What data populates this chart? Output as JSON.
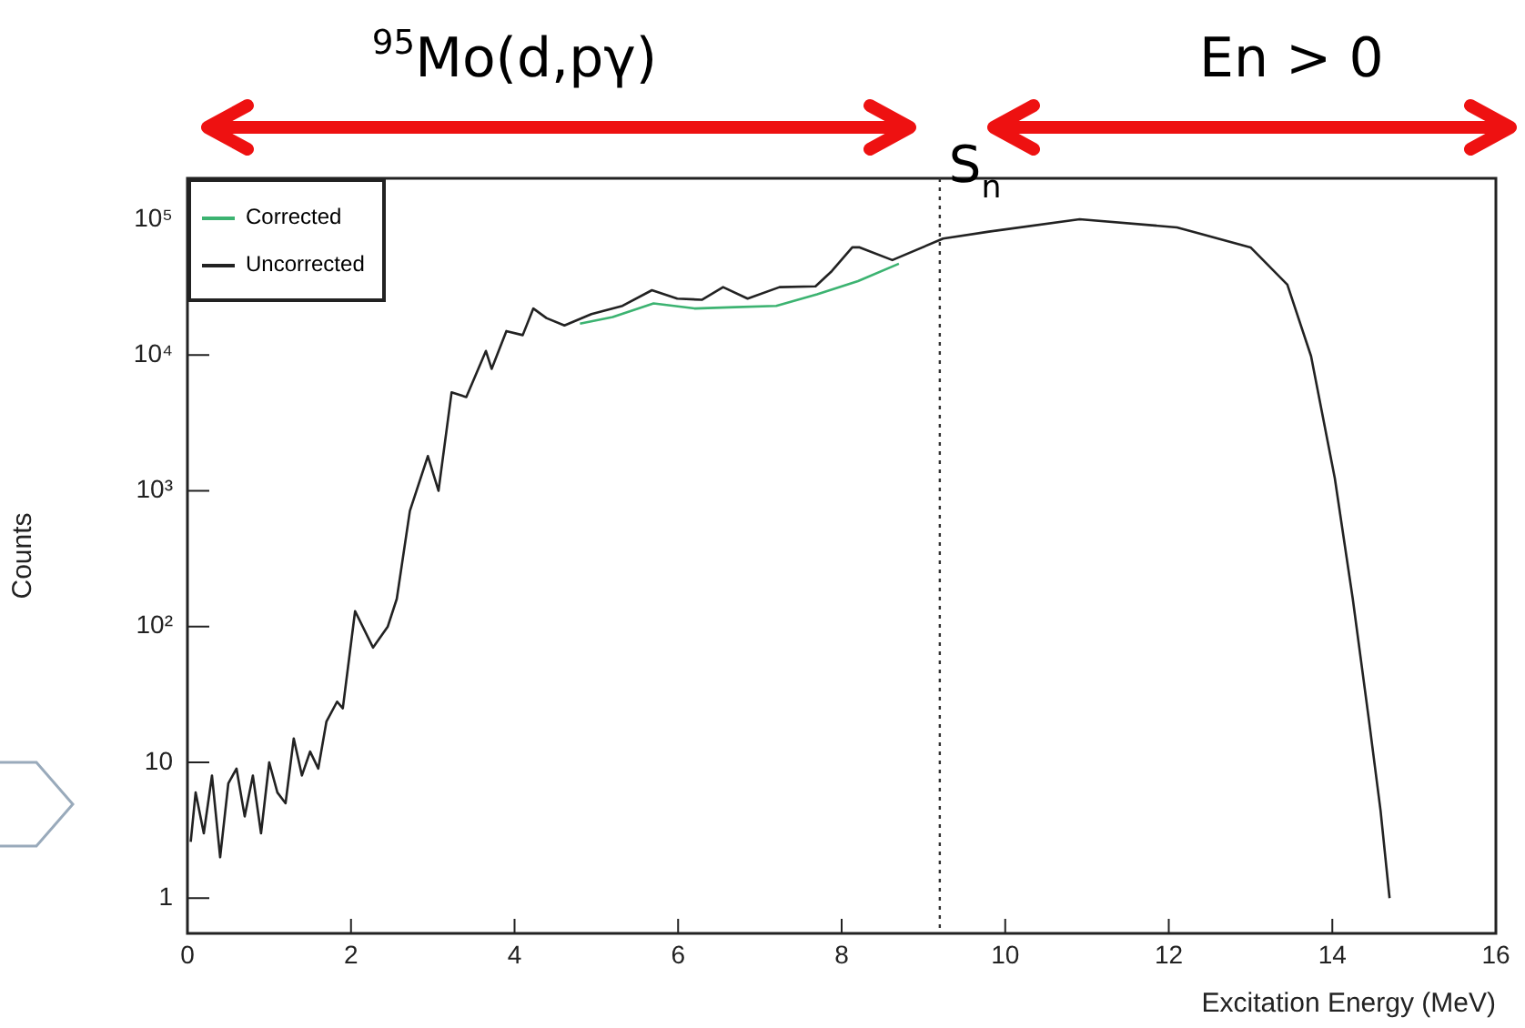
{
  "chart_data": {
    "type": "line",
    "xlabel": "Excitation Energy (MeV)",
    "ylabel": "Counts",
    "xlim": [
      0,
      16
    ],
    "xticks": [
      0,
      2,
      4,
      6,
      8,
      10,
      12,
      14,
      16
    ],
    "ylim": [
      0.55,
      200000
    ],
    "yticks": [
      1,
      10,
      {
        "value": 100,
        "label": "10²"
      },
      {
        "value": 1000,
        "label": "10³"
      },
      {
        "value": 10000,
        "label": "10⁴"
      },
      {
        "value": 100000,
        "label": "10⁵"
      }
    ],
    "log": "y",
    "legend": "top left",
    "marker": "none",
    "series": [
      {
        "name": "Corrected",
        "color": "#3cb371",
        "x": [
          4.8,
          5.2,
          5.7,
          6.2,
          6.7,
          7.2,
          7.7,
          8.2,
          8.7
        ],
        "values": [
          17000,
          19000,
          24000,
          22000,
          22500,
          23000,
          28000,
          35000,
          47000
        ]
      },
      {
        "name": "Uncorrected",
        "color": "#222222",
        "x": [
          0.04,
          0.1,
          0.2,
          0.3,
          0.4,
          0.5,
          0.6,
          0.7,
          0.8,
          0.9,
          1.0,
          1.1,
          1.2,
          1.3,
          1.4,
          1.5,
          1.6,
          1.7,
          1.83,
          1.9,
          2.05,
          2.27,
          2.45,
          2.56,
          2.72,
          2.94,
          3.07,
          3.23,
          3.41,
          3.65,
          3.72,
          3.9,
          4.1,
          4.23,
          4.39,
          4.61,
          4.94,
          5.32,
          5.68,
          5.99,
          6.29,
          6.55,
          6.85,
          7.24,
          7.68,
          7.88,
          8.13,
          8.22,
          8.62,
          9.24,
          9.8,
          10.91,
          12.1,
          13.0,
          13.45,
          13.74,
          14.03,
          14.25,
          14.45,
          14.59,
          14.7
        ],
        "values": [
          2.6,
          6,
          3,
          8,
          2,
          7,
          9,
          4,
          8,
          3,
          10,
          6,
          5,
          15,
          8,
          12,
          9,
          20,
          28,
          25,
          130,
          70,
          100,
          160,
          710,
          1800,
          1000,
          5300,
          4900,
          10700,
          7900,
          15000,
          14000,
          22000,
          18700,
          16500,
          20000,
          23000,
          30000,
          26000,
          25500,
          31600,
          26000,
          31600,
          32000,
          41500,
          62000,
          62000,
          50000,
          72000,
          81000,
          100000,
          87000,
          62000,
          33000,
          9800,
          1240,
          160,
          20,
          4.4,
          1
        ]
      }
    ],
    "ref_lines": [
      {
        "axis": "x",
        "value": 9.2,
        "label": "S$_{n}$",
        "line_style": "dotted"
      }
    ],
    "annotations": [
      "$^{95}$Mo(d,pγ)",
      "En > 0"
    ]
  }
}
